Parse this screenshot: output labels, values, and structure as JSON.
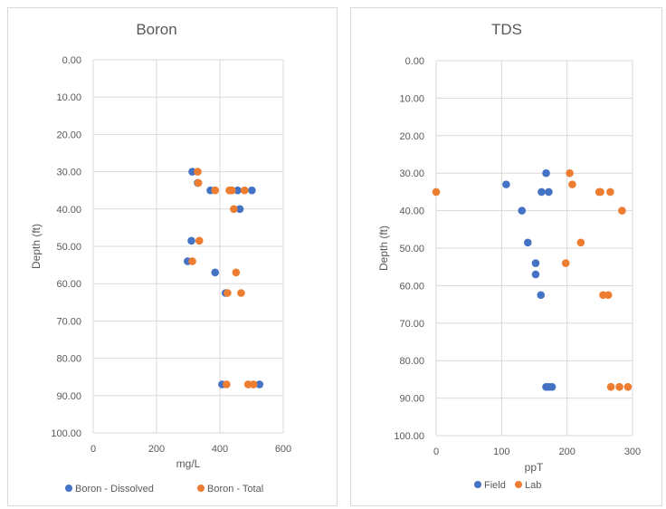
{
  "colors": {
    "series1": "#4472c4",
    "series2": "#ed7d31"
  },
  "chart_data": [
    {
      "type": "scatter",
      "title": "Boron",
      "xlabel": "mg/L",
      "ylabel": "Depth (ft)",
      "xlim": [
        0,
        600
      ],
      "ylim": [
        0,
        100
      ],
      "y_reversed": true,
      "xticks": [
        "0",
        "200",
        "400",
        "600"
      ],
      "yticks": [
        "0.00",
        "10.00",
        "20.00",
        "30.00",
        "40.00",
        "50.00",
        "60.00",
        "70.00",
        "80.00",
        "90.00",
        "100.00"
      ],
      "grid": true,
      "legend_position": "bottom",
      "series": [
        {
          "name": "Boron - Dissolved",
          "color": "#4472c4",
          "points": [
            [
              313,
              30
            ],
            [
              330,
              33
            ],
            [
              370,
              35
            ],
            [
              456,
              35
            ],
            [
              501,
              35
            ],
            [
              463,
              40
            ],
            [
              310,
              48.5
            ],
            [
              298,
              54
            ],
            [
              385,
              57
            ],
            [
              418,
              62.5
            ],
            [
              407,
              87
            ],
            [
              525,
              87
            ]
          ]
        },
        {
          "name": "Boron - Total",
          "color": "#ed7d31",
          "points": [
            [
              330,
              30
            ],
            [
              332,
              33
            ],
            [
              385,
              35
            ],
            [
              430,
              35
            ],
            [
              438,
              35
            ],
            [
              478,
              35
            ],
            [
              444,
              40
            ],
            [
              335,
              48.5
            ],
            [
              313,
              54
            ],
            [
              451,
              57
            ],
            [
              424,
              62.5
            ],
            [
              467,
              62.5
            ],
            [
              421,
              87
            ],
            [
              489,
              87
            ],
            [
              506,
              87
            ]
          ]
        }
      ]
    },
    {
      "type": "scatter",
      "title": "TDS",
      "xlabel": "ppT",
      "ylabel": "Depth (ft)",
      "xlim": [
        0,
        300
      ],
      "ylim": [
        0,
        100
      ],
      "y_reversed": true,
      "xticks": [
        "0",
        "100",
        "200",
        "300"
      ],
      "yticks": [
        "0.00",
        "10.00",
        "20.00",
        "30.00",
        "40.00",
        "50.00",
        "60.00",
        "70.00",
        "80.00",
        "90.00",
        "100.00"
      ],
      "grid": true,
      "legend_position": "bottom",
      "series": [
        {
          "name": "Field",
          "color": "#4472c4",
          "points": [
            [
              168,
              30
            ],
            [
              107,
              33
            ],
            [
              161,
              35
            ],
            [
              172,
              35
            ],
            [
              131,
              40
            ],
            [
              140,
              48.5
            ],
            [
              152,
              54
            ],
            [
              152,
              57
            ],
            [
              160,
              62.5
            ],
            [
              168,
              87
            ],
            [
              172,
              87
            ],
            [
              177,
              87
            ]
          ]
        },
        {
          "name": "Lab",
          "color": "#ed7d31",
          "points": [
            [
              204,
              30
            ],
            [
              208,
              33
            ],
            [
              0,
              35
            ],
            [
              249,
              35
            ],
            [
              251,
              35
            ],
            [
              266,
              35
            ],
            [
              284,
              40
            ],
            [
              221,
              48.5
            ],
            [
              198,
              54
            ],
            [
              255,
              62.5
            ],
            [
              263,
              62.5
            ],
            [
              267,
              87
            ],
            [
              280,
              87
            ],
            [
              293,
              87
            ]
          ]
        }
      ]
    }
  ]
}
